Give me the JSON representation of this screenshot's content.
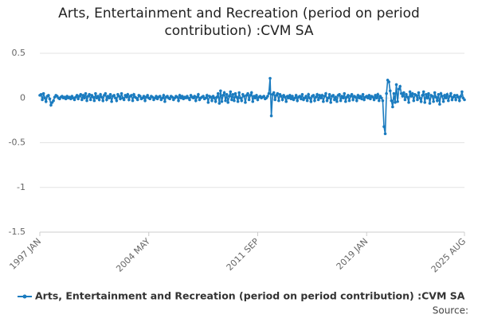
{
  "chart_data": {
    "type": "line",
    "title": "Arts, Entertainment and Recreation (period on period contribution) :CVM SA",
    "source": "Source:",
    "categories": [
      "1997 JAN",
      null,
      null,
      null,
      null,
      null,
      null,
      null,
      null,
      null,
      null,
      null,
      null,
      null,
      null,
      null,
      null,
      null,
      null,
      null,
      null,
      null,
      null,
      null,
      null,
      null,
      null,
      null,
      null,
      null,
      null,
      null,
      null,
      null,
      null,
      null,
      null,
      null,
      null,
      null,
      null,
      null,
      null,
      null,
      null,
      null,
      null,
      null,
      null,
      null,
      null,
      null,
      null,
      null,
      null,
      null,
      null,
      null,
      null,
      null,
      null,
      null,
      null,
      null,
      null,
      null,
      null,
      null,
      null,
      null,
      null,
      null,
      null,
      null,
      null,
      null,
      null,
      null,
      null,
      null,
      null,
      null,
      null,
      null,
      null,
      null,
      null,
      null,
      "2004 MAY",
      null,
      null,
      null,
      null,
      null,
      null,
      null,
      null,
      null,
      null,
      null,
      null,
      null,
      null,
      null,
      null,
      null,
      null,
      null,
      null,
      null,
      null,
      null,
      null,
      null,
      null,
      null,
      null,
      null,
      null,
      null,
      null,
      null,
      null,
      null,
      null,
      null,
      null,
      null,
      null,
      null,
      null,
      null,
      null,
      null,
      null,
      null,
      null,
      null,
      null,
      null,
      null,
      null,
      null,
      null,
      null,
      null,
      null,
      null,
      null,
      null,
      null,
      null,
      null,
      null,
      null,
      null,
      null,
      null,
      null,
      null,
      null,
      null,
      null,
      null,
      null,
      null,
      null,
      null,
      null,
      null,
      null,
      null,
      null,
      null,
      null,
      null,
      "2011 SEP",
      null,
      null,
      null,
      null,
      null,
      null,
      null,
      null,
      null,
      null,
      null,
      null,
      null,
      null,
      null,
      null,
      null,
      null,
      null,
      null,
      null,
      null,
      null,
      null,
      null,
      null,
      null,
      null,
      null,
      null,
      null,
      null,
      null,
      null,
      null,
      null,
      null,
      null,
      null,
      null,
      null,
      null,
      null,
      null,
      null,
      null,
      null,
      null,
      null,
      null,
      null,
      null,
      null,
      null,
      null,
      null,
      null,
      null,
      null,
      null,
      null,
      null,
      null,
      null,
      null,
      null,
      null,
      null,
      null,
      null,
      null,
      null,
      null,
      null,
      null,
      null,
      null,
      null,
      null,
      null,
      null,
      null,
      null,
      null,
      null,
      null,
      null,
      "2019 JAN",
      null,
      null,
      null,
      null,
      null,
      null,
      null,
      null,
      null,
      null,
      null,
      null,
      null,
      null,
      null,
      null,
      null,
      null,
      null,
      null,
      null,
      null,
      null,
      null,
      null,
      null,
      null,
      null,
      null,
      null,
      null,
      null,
      null,
      null,
      null,
      null,
      null,
      null,
      null,
      null,
      null,
      null,
      null,
      null,
      null,
      null,
      null,
      null,
      null,
      null,
      null,
      null,
      null,
      null,
      null,
      null,
      null,
      null,
      null,
      null,
      null,
      null,
      null,
      null,
      null,
      null,
      null,
      null,
      null,
      null,
      null,
      null,
      null,
      null,
      null,
      null,
      null,
      null,
      "2025 AUG"
    ],
    "series": [
      {
        "name": "Arts, Entertainment and Recreation (period on period contribution) :CVM SA",
        "color": "#1a7bbf",
        "values": [
          0.03,
          0.04,
          -0.02,
          0.05,
          0.0,
          -0.04,
          0.02,
          0.03,
          -0.01,
          -0.08,
          -0.05,
          -0.03,
          0.01,
          0.03,
          0.02,
          0.0,
          -0.01,
          0.01,
          0.02,
          0.0,
          0.01,
          -0.01,
          0.02,
          0.0,
          0.01,
          -0.01,
          0.02,
          0.0,
          -0.02,
          0.01,
          0.03,
          -0.01,
          0.02,
          0.04,
          -0.02,
          0.03,
          0.0,
          0.05,
          -0.03,
          0.02,
          0.04,
          -0.02,
          0.03,
          0.01,
          -0.03,
          0.05,
          0.0,
          0.02,
          -0.02,
          0.04,
          0.01,
          -0.03,
          0.03,
          0.05,
          -0.02,
          0.02,
          0.0,
          0.04,
          -0.04,
          0.02,
          0.03,
          0.0,
          -0.03,
          0.04,
          0.02,
          -0.01,
          0.05,
          0.0,
          -0.02,
          0.03,
          0.01,
          0.04,
          -0.02,
          0.02,
          0.03,
          -0.03,
          0.04,
          0.01,
          0.0,
          -0.02,
          0.03,
          0.02,
          -0.01,
          0.0,
          0.02,
          -0.03,
          0.01,
          0.03,
          0.0,
          -0.01,
          0.02,
          0.01,
          -0.02,
          0.0,
          0.02,
          -0.01,
          0.01,
          0.02,
          -0.02,
          0.0,
          0.03,
          -0.04,
          0.01,
          0.02,
          0.0,
          -0.01,
          0.02,
          0.01,
          -0.02,
          0.0,
          0.02,
          0.01,
          -0.03,
          0.03,
          0.0,
          0.02,
          -0.01,
          0.01,
          0.0,
          0.02,
          0.0,
          -0.02,
          0.03,
          0.01,
          0.0,
          0.02,
          -0.03,
          0.01,
          0.04,
          -0.02,
          0.0,
          0.01,
          0.02,
          -0.01,
          0.0,
          0.03,
          -0.05,
          0.02,
          0.01,
          -0.03,
          0.02,
          0.0,
          -0.04,
          0.01,
          0.05,
          -0.06,
          0.08,
          -0.04,
          0.03,
          0.06,
          -0.03,
          0.04,
          -0.05,
          0.02,
          0.07,
          -0.02,
          0.04,
          -0.03,
          0.05,
          0.01,
          -0.04,
          0.06,
          0.0,
          -0.03,
          0.04,
          0.02,
          -0.05,
          0.03,
          0.05,
          -0.02,
          0.03,
          0.06,
          -0.04,
          0.02,
          0.0,
          0.03,
          -0.02,
          0.01,
          0.02,
          0.0,
          0.01,
          0.02,
          -0.01,
          0.0,
          0.02,
          0.05,
          0.22,
          -0.2,
          0.04,
          0.06,
          -0.02,
          0.03,
          0.05,
          -0.03,
          0.04,
          0.02,
          -0.02,
          0.03,
          0.01,
          -0.04,
          0.02,
          0.0,
          0.03,
          -0.01,
          0.02,
          -0.02,
          0.0,
          0.03,
          -0.03,
          0.01,
          0.02,
          -0.01,
          0.04,
          -0.02,
          0.0,
          0.02,
          -0.03,
          0.04,
          0.0,
          -0.04,
          0.02,
          0.03,
          -0.03,
          0.01,
          0.04,
          -0.02,
          0.03,
          0.0,
          0.03,
          -0.04,
          0.02,
          0.05,
          -0.03,
          0.0,
          0.04,
          -0.05,
          0.02,
          0.03,
          -0.02,
          0.01,
          -0.04,
          0.03,
          0.04,
          -0.03,
          0.02,
          0.0,
          0.05,
          -0.04,
          0.01,
          0.03,
          -0.03,
          0.02,
          0.04,
          -0.02,
          0.02,
          0.01,
          -0.03,
          0.03,
          0.0,
          0.02,
          -0.01,
          0.04,
          -0.02,
          0.01,
          0.02,
          0.0,
          0.03,
          -0.01,
          0.02,
          0.01,
          -0.02,
          0.03,
          0.0,
          0.04,
          -0.03,
          0.02,
          0.0,
          -0.03,
          -0.32,
          -0.4,
          0.05,
          0.2,
          0.18,
          0.08,
          -0.03,
          -0.1,
          0.05,
          -0.05,
          0.15,
          -0.04,
          0.1,
          0.13,
          0.05,
          0.02,
          0.06,
          -0.02,
          0.04,
          0.01,
          -0.05,
          0.07,
          0.02,
          0.05,
          -0.03,
          0.04,
          0.03,
          -0.02,
          0.06,
          0.0,
          -0.04,
          0.03,
          0.07,
          -0.05,
          0.04,
          0.0,
          0.05,
          -0.06,
          0.03,
          0.02,
          -0.04,
          0.06,
          0.01,
          -0.03,
          0.04,
          -0.07,
          0.05,
          0.02,
          -0.04,
          0.03,
          0.0,
          0.04,
          -0.03,
          0.02,
          0.05,
          -0.02,
          0.01,
          0.03,
          -0.02,
          0.03,
          0.01,
          -0.03,
          0.02,
          0.07,
          0.0,
          -0.02
        ]
      }
    ],
    "ylim": [
      -1.5,
      0.5
    ],
    "yticks": [
      0.5,
      0,
      -0.5,
      -1,
      -1.5
    ],
    "grid": true,
    "legend": "bottom"
  }
}
